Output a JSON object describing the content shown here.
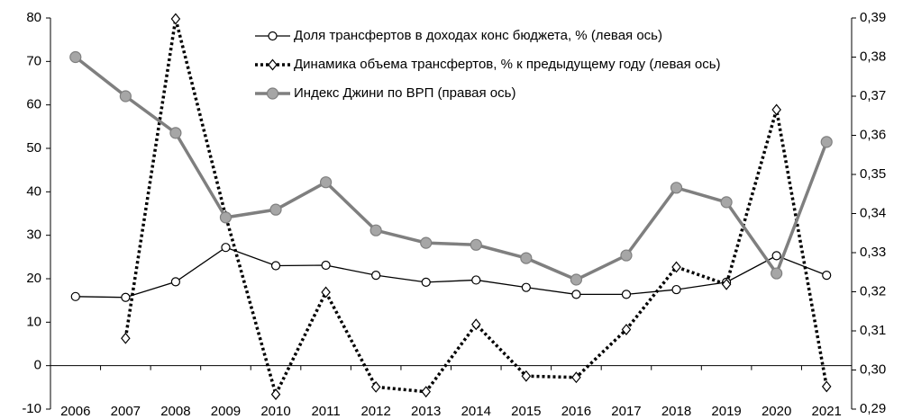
{
  "chart_data": {
    "type": "line",
    "categories": [
      "2006",
      "2007",
      "2008",
      "2009",
      "2010",
      "2011",
      "2012",
      "2013",
      "2014",
      "2015",
      "2016",
      "2017",
      "2018",
      "2019",
      "2020",
      "2021"
    ],
    "series": [
      {
        "name": "Доля трансфертов в доходах конс бюджета, % (левая ось)",
        "color": "#000000",
        "line_style": "solid",
        "marker": "circle",
        "marker_fill": "#ffffff",
        "values": [
          15.9,
          15.7,
          19.3,
          27.2,
          23.0,
          23.1,
          20.8,
          19.2,
          19.7,
          18.0,
          16.4,
          16.4,
          17.5,
          19.2,
          25.3,
          20.8
        ]
      },
      {
        "name": "Динамика объема трансфертов, % к предыдущему году (левая ось)",
        "color": "#000000",
        "line_style": "dotted",
        "marker": "diamond",
        "marker_fill": "#ffffff",
        "values": [
          null,
          6.3,
          79.8,
          34.4,
          -6.6,
          16.9,
          -4.9,
          -6.0,
          9.5,
          -2.4,
          -2.7,
          8.3,
          22.7,
          18.7,
          58.9,
          -4.8
        ]
      },
      {
        "name": "Индекс Джини по ВРП (правая ось)",
        "color": "#7f7f7f",
        "line_style": "thick",
        "marker": "circle",
        "marker_fill": "#a6a6a6",
        "axis": "y2",
        "values": [
          0.38,
          0.37,
          0.3606,
          0.339,
          0.341,
          0.348,
          0.3357,
          0.3325,
          0.332,
          0.3286,
          0.3231,
          0.3293,
          0.3466,
          0.3429,
          0.3247,
          0.3583
        ]
      }
    ],
    "ylim": [
      -10,
      80
    ],
    "yticks": [
      -10,
      0,
      10,
      20,
      30,
      40,
      50,
      60,
      70,
      80
    ],
    "y2lim": [
      0.29,
      0.39
    ],
    "y2ticks": [
      {
        "value": 0.29,
        "label": "0,29"
      },
      {
        "value": 0.3,
        "label": "0,30"
      },
      {
        "value": 0.31,
        "label": "0,31"
      },
      {
        "value": 0.32,
        "label": "0,32"
      },
      {
        "value": 0.33,
        "label": "0,33"
      },
      {
        "value": 0.34,
        "label": "0,34"
      },
      {
        "value": 0.35,
        "label": "0,35"
      },
      {
        "value": 0.36,
        "label": "0,36"
      },
      {
        "value": 0.37,
        "label": "0,37"
      },
      {
        "value": 0.38,
        "label": "0,38"
      },
      {
        "value": 0.39,
        "label": "0,39"
      }
    ],
    "grid": false
  }
}
